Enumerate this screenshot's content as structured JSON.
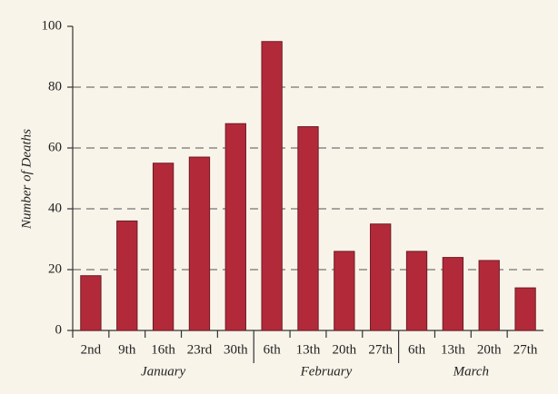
{
  "chart_data": {
    "type": "bar",
    "y_label": "Number of Deaths",
    "categories": [
      "2nd",
      "9th",
      "16th",
      "23rd",
      "30th",
      "6th",
      "13th",
      "20th",
      "27th",
      "6th",
      "13th",
      "20th",
      "27th"
    ],
    "groups": [
      "January",
      "January",
      "January",
      "January",
      "January",
      "February",
      "February",
      "February",
      "February",
      "March",
      "March",
      "March",
      "March"
    ],
    "values": [
      18,
      36,
      55,
      57,
      68,
      95,
      67,
      26,
      35,
      26,
      24,
      23,
      14
    ],
    "color": "#b22a3a",
    "ylim": [
      0,
      100
    ],
    "yticks": [
      0,
      20,
      40,
      60,
      80,
      100
    ],
    "grid": true
  }
}
